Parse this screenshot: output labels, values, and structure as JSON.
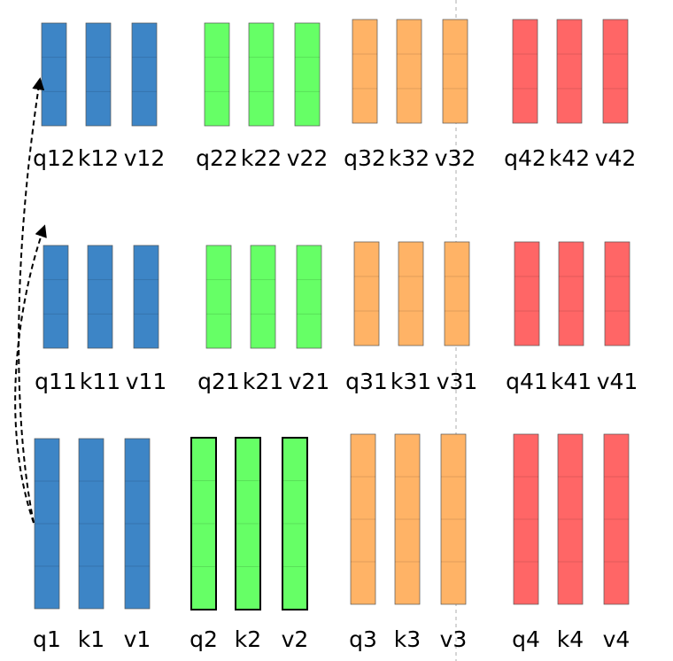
{
  "rows": [
    {
      "groups": [
        {
          "labels": [
            "q12",
            "k12",
            "v12"
          ]
        },
        {
          "labels": [
            "q22",
            "k22",
            "v22"
          ]
        },
        {
          "labels": [
            "q32",
            "k32",
            "v32"
          ]
        },
        {
          "labels": [
            "q42",
            "k42",
            "v42"
          ]
        }
      ]
    },
    {
      "groups": [
        {
          "labels": [
            "q11",
            "k11",
            "v11"
          ]
        },
        {
          "labels": [
            "q21",
            "k21",
            "v21"
          ]
        },
        {
          "labels": [
            "q31",
            "k31",
            "v31"
          ]
        },
        {
          "labels": [
            "q41",
            "k41",
            "v41"
          ]
        }
      ]
    },
    {
      "groups": [
        {
          "labels": [
            "q1",
            "k1",
            "v1"
          ]
        },
        {
          "labels": [
            "q2",
            "k2",
            "v2"
          ]
        },
        {
          "labels": [
            "q3",
            "k3",
            "v3"
          ]
        },
        {
          "labels": [
            "q4",
            "k4",
            "v4"
          ]
        }
      ]
    }
  ]
}
